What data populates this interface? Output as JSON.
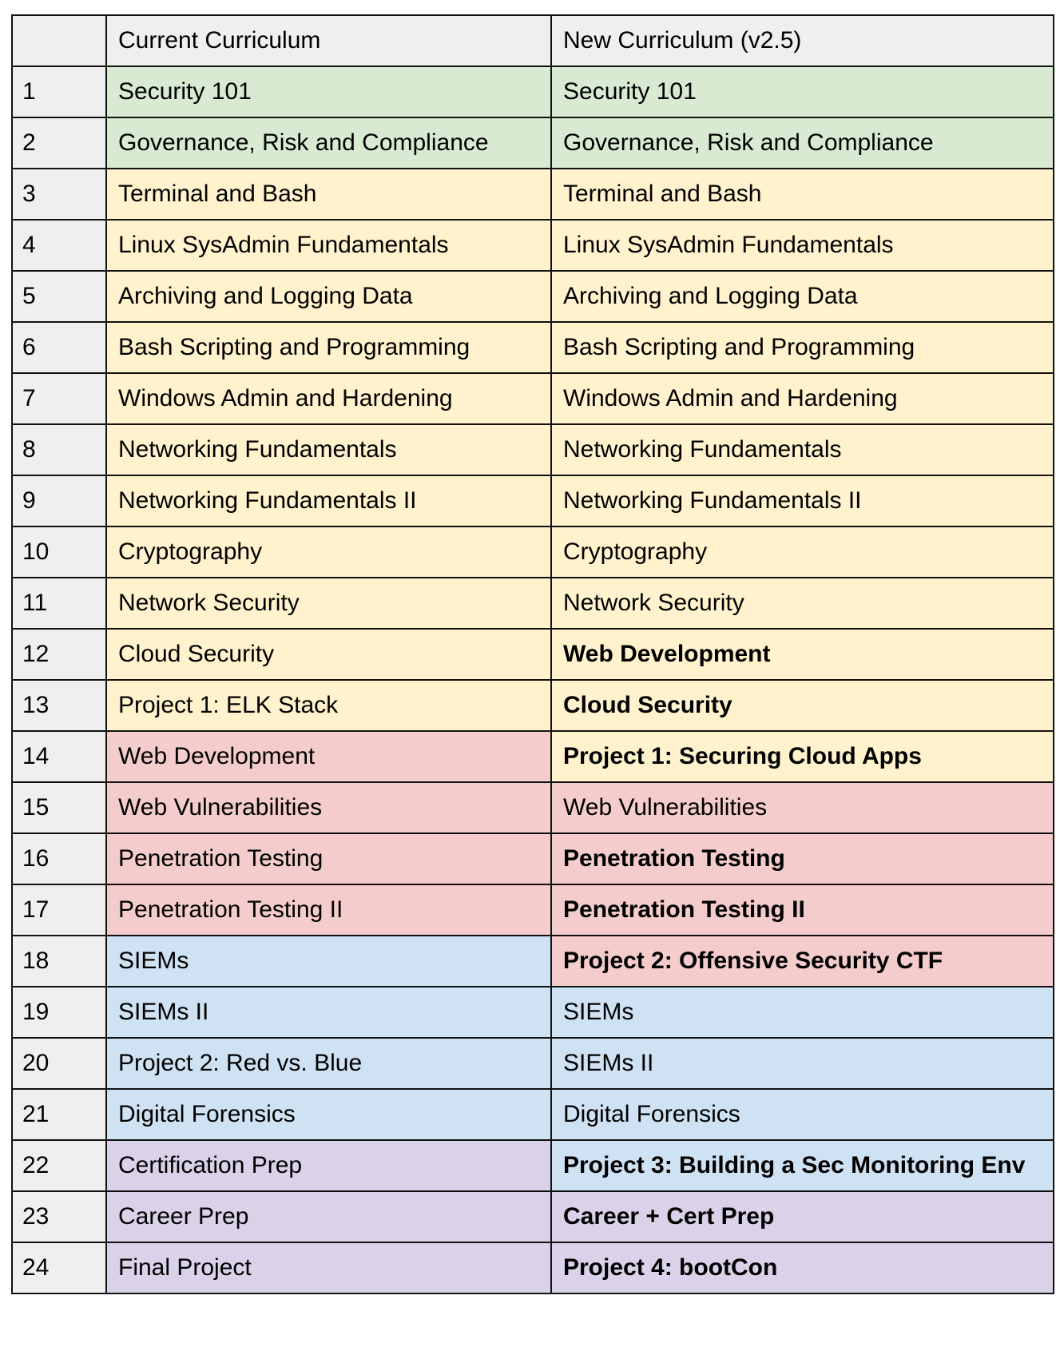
{
  "headers": [
    "",
    "Current Curriculum",
    "New Curriculum (v2.5)"
  ],
  "colors": {
    "green": "#d9ead3",
    "yellow": "#fff2cc",
    "red": "#f4cccc",
    "blue": "#cfe2f3",
    "purple": "#d9d2e9",
    "header_gray": "#efefef"
  },
  "rows": [
    {
      "num": "1",
      "current": "Security 101",
      "current_color": "green",
      "new": "Security 101",
      "new_color": "green",
      "new_bold": false
    },
    {
      "num": "2",
      "current": "Governance, Risk and Compliance",
      "current_color": "green",
      "new": "Governance, Risk and Compliance",
      "new_color": "green",
      "new_bold": false
    },
    {
      "num": "3",
      "current": "Terminal and Bash",
      "current_color": "yellow",
      "new": "Terminal and Bash",
      "new_color": "yellow",
      "new_bold": false
    },
    {
      "num": "4",
      "current": "Linux SysAdmin Fundamentals",
      "current_color": "yellow",
      "new": "Linux SysAdmin Fundamentals",
      "new_color": "yellow",
      "new_bold": false
    },
    {
      "num": "5",
      "current": "Archiving and Logging Data",
      "current_color": "yellow",
      "new": "Archiving and Logging Data",
      "new_color": "yellow",
      "new_bold": false
    },
    {
      "num": "6",
      "current": "Bash Scripting and Programming",
      "current_color": "yellow",
      "new": "Bash Scripting and Programming",
      "new_color": "yellow",
      "new_bold": false
    },
    {
      "num": "7",
      "current": "Windows Admin and Hardening",
      "current_color": "yellow",
      "new": "Windows Admin and Hardening",
      "new_color": "yellow",
      "new_bold": false
    },
    {
      "num": "8",
      "current": "Networking Fundamentals",
      "current_color": "yellow",
      "new": "Networking Fundamentals",
      "new_color": "yellow",
      "new_bold": false
    },
    {
      "num": "9",
      "current": "Networking Fundamentals II",
      "current_color": "yellow",
      "new": "Networking Fundamentals II",
      "new_color": "yellow",
      "new_bold": false
    },
    {
      "num": "10",
      "current": "Cryptography",
      "current_color": "yellow",
      "new": "Cryptography",
      "new_color": "yellow",
      "new_bold": false
    },
    {
      "num": "11",
      "current": "Network Security",
      "current_color": "yellow",
      "new": "Network Security",
      "new_color": "yellow",
      "new_bold": false
    },
    {
      "num": "12",
      "current": "Cloud Security",
      "current_color": "yellow",
      "new": "Web Development",
      "new_color": "yellow",
      "new_bold": true
    },
    {
      "num": "13",
      "current": "Project 1: ELK Stack",
      "current_color": "yellow",
      "new": "Cloud Security",
      "new_color": "yellow",
      "new_bold": true
    },
    {
      "num": "14",
      "current": "Web Development",
      "current_color": "red",
      "new": "Project 1: Securing Cloud Apps",
      "new_color": "yellow",
      "new_bold": true
    },
    {
      "num": "15",
      "current": "Web Vulnerabilities",
      "current_color": "red",
      "new": "Web Vulnerabilities",
      "new_color": "red",
      "new_bold": false
    },
    {
      "num": "16",
      "current": "Penetration Testing",
      "current_color": "red",
      "new": "Penetration Testing",
      "new_color": "red",
      "new_bold": true
    },
    {
      "num": "17",
      "current": "Penetration Testing II",
      "current_color": "red",
      "new": "Penetration Testing II",
      "new_color": "red",
      "new_bold": true
    },
    {
      "num": "18",
      "current": "SIEMs",
      "current_color": "blue",
      "new": "Project 2: Offensive Security CTF",
      "new_color": "red",
      "new_bold": true
    },
    {
      "num": "19",
      "current": "SIEMs II",
      "current_color": "blue",
      "new": "SIEMs",
      "new_color": "blue",
      "new_bold": false
    },
    {
      "num": "20",
      "current": "Project 2: Red vs. Blue",
      "current_color": "blue",
      "new": "SIEMs II",
      "new_color": "blue",
      "new_bold": false
    },
    {
      "num": "21",
      "current": "Digital Forensics",
      "current_color": "blue",
      "new": "Digital Forensics",
      "new_color": "blue",
      "new_bold": false
    },
    {
      "num": "22",
      "current": "Certification Prep",
      "current_color": "purple",
      "new": "Project 3: Building a Sec Monitoring Env",
      "new_color": "blue",
      "new_bold": true
    },
    {
      "num": "23",
      "current": "Career Prep",
      "current_color": "purple",
      "new": "Career + Cert Prep",
      "new_color": "purple",
      "new_bold": true
    },
    {
      "num": "24",
      "current": "Final Project",
      "current_color": "purple",
      "new": "Project 4: bootCon",
      "new_color": "purple",
      "new_bold": true
    }
  ]
}
